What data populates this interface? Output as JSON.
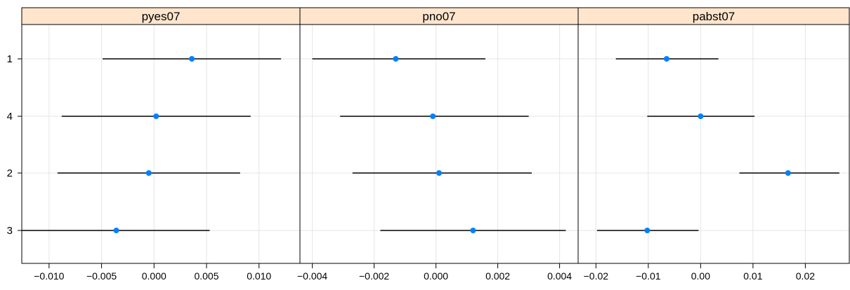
{
  "chart_data": {
    "type": "dotplot-errorbars",
    "rows": [
      "1",
      "4",
      "2",
      "3"
    ],
    "grid": true,
    "colors": {
      "strip_bg": "#ffe5cc",
      "point": "#0080ff",
      "errorbar": "#000000",
      "gridline": "#e5e5e5",
      "frame": "#000000"
    },
    "panels": [
      {
        "title": "pyes07",
        "xlim": [
          -0.0126,
          0.0139
        ],
        "ticks": [
          -0.01,
          -0.005,
          0.0,
          0.005,
          0.01
        ],
        "tick_labels": [
          "−0.010",
          "−0.005",
          "0.000",
          "0.005",
          "0.010"
        ],
        "estimates": [
          0.0036,
          0.0002,
          -0.0005,
          -0.0036
        ],
        "lower": [
          -0.0049,
          -0.0088,
          -0.0092,
          -0.0126
        ],
        "upper": [
          0.0121,
          0.0092,
          0.0082,
          0.0053
        ]
      },
      {
        "title": "pno07",
        "xlim": [
          -0.0044,
          0.0046
        ],
        "ticks": [
          -0.004,
          -0.002,
          0.0,
          0.002,
          0.004
        ],
        "tick_labels": [
          "−0.004",
          "−0.002",
          "0.000",
          "0.002",
          "0.004"
        ],
        "estimates": [
          -0.0013,
          -0.0001,
          0.0001,
          0.0012
        ],
        "lower": [
          -0.004,
          -0.0031,
          -0.0027,
          -0.0018
        ],
        "upper": [
          0.0016,
          0.003,
          0.0031,
          0.0042
        ]
      },
      {
        "title": "pabst07",
        "xlim": [
          -0.0234,
          0.0284
        ],
        "ticks": [
          -0.02,
          -0.01,
          0.0,
          0.01,
          0.02
        ],
        "tick_labels": [
          "−0.02",
          "−0.01",
          "0.00",
          "0.01",
          "0.02"
        ],
        "estimates": [
          -0.0065,
          0.0,
          0.0167,
          -0.0102
        ],
        "lower": [
          -0.0162,
          -0.0102,
          0.0074,
          -0.0198
        ],
        "upper": [
          0.0034,
          0.0103,
          0.0265,
          -0.0004
        ]
      }
    ]
  }
}
